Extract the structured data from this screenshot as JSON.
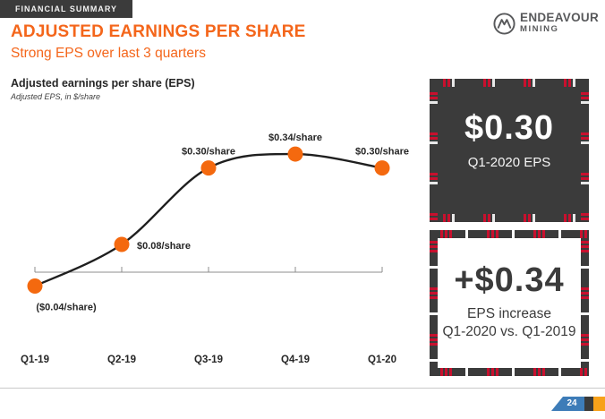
{
  "slide": {
    "kicker": "FINANCIAL SUMMARY",
    "title": "ADJUSTED EARNINGS PER SHARE",
    "subtitle": "Strong EPS over last 3 quarters",
    "page_number": "24"
  },
  "logo": {
    "name": "ENDEAVOUR",
    "sub": "MINING"
  },
  "chart_header": {
    "title": "Adjusted earnings per share (EPS)",
    "subtitle": "Adjusted EPS, in $/share"
  },
  "chart_data": {
    "type": "line",
    "title": "Adjusted earnings per share (EPS)",
    "xlabel": "",
    "ylabel": "Adjusted EPS, in $/share",
    "categories": [
      "Q1-19",
      "Q2-19",
      "Q3-19",
      "Q4-19",
      "Q1-20"
    ],
    "values": [
      -0.04,
      0.08,
      0.3,
      0.34,
      0.3
    ],
    "point_labels": [
      "($0.04/share)",
      "$0.08/share",
      "$0.30/share",
      "$0.34/share",
      "$0.30/share"
    ],
    "label_positions": [
      "below",
      "right",
      "above",
      "above",
      "above"
    ],
    "ylim": [
      -0.12,
      0.45
    ],
    "grid": false,
    "legend": "none",
    "line_color": "#1f1f1f",
    "marker_color": "#f4690f",
    "axis_color": "#8c8c8c",
    "label_color": "#262626"
  },
  "callouts": {
    "top": {
      "value": "$0.30",
      "label": "Q1-2020 EPS"
    },
    "bottom": {
      "value": "+$0.34",
      "label_line1": "EPS increase",
      "label_line2": "Q1-2020 vs. Q1-2019"
    }
  },
  "colors": {
    "title_orange": "#f4661b",
    "marker_orange": "#f4690f",
    "dark": "#3b3b3b",
    "accent_red": "#c8102e",
    "page_blue": "#3d7cb8",
    "page_orange": "#f7a11a"
  }
}
